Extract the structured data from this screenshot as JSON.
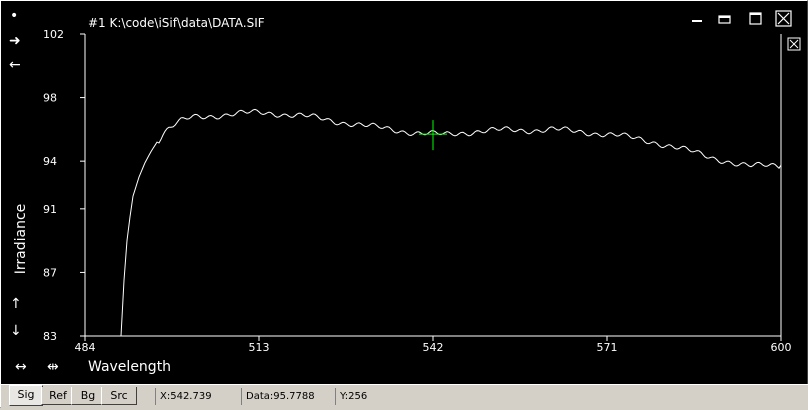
{
  "window": {
    "title": "#1  K:\\code\\iSif\\data\\DATA.SIF"
  },
  "title_buttons": {
    "minimize": "minimize",
    "maximize": "maximize",
    "close": "close"
  },
  "chart_data": {
    "type": "line",
    "xlabel": "Wavelength",
    "ylabel": "Irradiance",
    "xlim": [
      484,
      600
    ],
    "ylim": [
      83,
      102
    ],
    "x_ticks": [
      "484",
      "513",
      "542",
      "571",
      "600"
    ],
    "y_ticks": [
      "102",
      "98",
      "94",
      "91",
      "87",
      "83"
    ],
    "series": [
      {
        "color": "#ffffff",
        "points": [
          [
            490,
            83
          ],
          [
            490.5,
            86.5
          ],
          [
            491,
            89
          ],
          [
            491.5,
            90.5
          ],
          [
            492,
            91.8
          ],
          [
            493,
            93
          ],
          [
            494,
            93.9
          ],
          [
            495,
            94.6
          ],
          [
            496,
            95.2
          ],
          [
            497,
            95.7
          ],
          [
            498,
            96.1
          ],
          [
            500,
            96.5
          ],
          [
            502,
            96.75
          ],
          [
            505,
            96.85
          ],
          [
            508,
            96.95
          ],
          [
            510,
            97.0
          ],
          [
            513,
            97.05
          ],
          [
            516,
            97.0
          ],
          [
            519,
            96.9
          ],
          [
            522,
            96.75
          ],
          [
            525,
            96.55
          ],
          [
            528,
            96.4
          ],
          [
            531,
            96.2
          ],
          [
            534,
            96.05
          ],
          [
            537,
            95.9
          ],
          [
            540,
            95.75
          ],
          [
            542,
            95.7
          ],
          [
            544,
            95.65
          ],
          [
            547,
            95.8
          ],
          [
            550,
            95.9
          ],
          [
            554,
            95.95
          ],
          [
            558,
            95.95
          ],
          [
            562,
            96.0
          ],
          [
            566,
            95.85
          ],
          [
            570,
            95.75
          ],
          [
            573,
            95.6
          ],
          [
            576,
            95.4
          ],
          [
            579,
            95.2
          ],
          [
            582,
            94.9
          ],
          [
            585,
            94.6
          ],
          [
            588,
            94.3
          ],
          [
            591,
            94.0
          ],
          [
            593,
            93.75
          ],
          [
            595,
            93.65
          ],
          [
            597,
            93.75
          ],
          [
            599,
            93.8
          ],
          [
            600,
            93.75
          ]
        ]
      }
    ],
    "cursor": {
      "x": 542,
      "y": 95.7,
      "color": "#00ff00"
    }
  },
  "left_tools": {
    "dot": "•",
    "right_arrow": "➜",
    "left_arrow": "←",
    "up_arrow": "↑",
    "down_arrow": "↓",
    "expand_horizontal": "↔",
    "contract_horizontal": "⇹"
  },
  "tabs": [
    {
      "label": "Sig"
    },
    {
      "label": "Ref"
    },
    {
      "label": "Bg"
    },
    {
      "label": "Src"
    }
  ],
  "status": {
    "x": "X:542.739",
    "data": "Data:95.7788",
    "y": "Y:256"
  },
  "icons": {
    "minimize": "minimize-icon",
    "maximize": "maximize-icon",
    "close": "close-icon",
    "small_close": "close-icon"
  }
}
